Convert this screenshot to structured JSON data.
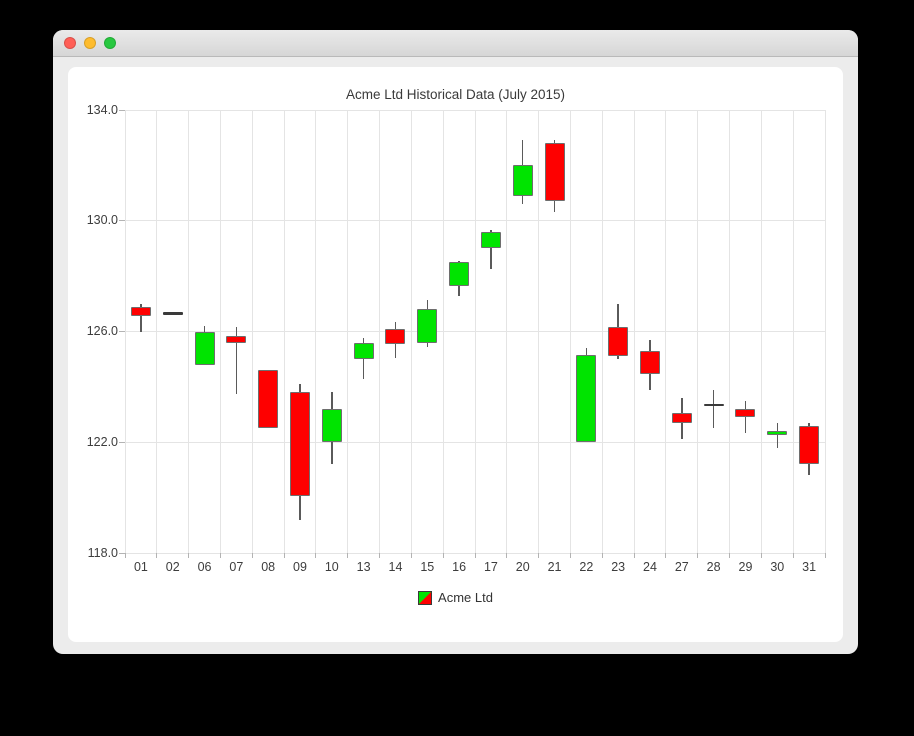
{
  "window": {
    "controls": [
      {
        "name": "close",
        "color": "#ff5f57"
      },
      {
        "name": "minimize",
        "color": "#febc2e"
      },
      {
        "name": "zoom",
        "color": "#28c840"
      }
    ]
  },
  "chart_data": {
    "type": "candlestick",
    "title": "Acme Ltd Historical Data (July 2015)",
    "legend_label": "Acme Ltd",
    "legend_position": "bottom",
    "grid": true,
    "ylim": [
      118.0,
      134.0
    ],
    "y_ticks": [
      134.0,
      130.0,
      126.0,
      122.0,
      118.0
    ],
    "y_tick_labels": [
      "134.0",
      "130.0",
      "126.0",
      "122.0",
      "118.0"
    ],
    "x_labels": [
      "01",
      "02",
      "06",
      "07",
      "08",
      "09",
      "10",
      "13",
      "14",
      "15",
      "16",
      "17",
      "20",
      "21",
      "22",
      "23",
      "24",
      "27",
      "28",
      "29",
      "30",
      "31"
    ],
    "colors": {
      "up": "#00e400",
      "down": "#fe0000",
      "neutral": "#3a3a3a",
      "wick": "#5a5a5a",
      "body_border": "#6e6e6e"
    },
    "series": [
      {
        "name": "Acme Ltd",
        "ohlc": [
          {
            "date": "01",
            "open": 126.9,
            "high": 127.0,
            "low": 126.0,
            "close": 126.55
          },
          {
            "date": "02",
            "open": 126.65,
            "high": 126.65,
            "low": 126.65,
            "close": 126.65
          },
          {
            "date": "06",
            "open": 124.8,
            "high": 126.2,
            "low": 124.8,
            "close": 126.0
          },
          {
            "date": "07",
            "open": 125.85,
            "high": 126.15,
            "low": 123.75,
            "close": 125.6
          },
          {
            "date": "08",
            "open": 124.6,
            "high": 124.6,
            "low": 122.5,
            "close": 122.5
          },
          {
            "date": "09",
            "open": 123.8,
            "high": 124.1,
            "low": 119.2,
            "close": 120.05
          },
          {
            "date": "10",
            "open": 122.0,
            "high": 123.8,
            "low": 121.2,
            "close": 123.2
          },
          {
            "date": "13",
            "open": 125.0,
            "high": 125.75,
            "low": 124.3,
            "close": 125.6
          },
          {
            "date": "14",
            "open": 126.1,
            "high": 126.35,
            "low": 125.05,
            "close": 125.55
          },
          {
            "date": "15",
            "open": 125.6,
            "high": 127.15,
            "low": 125.45,
            "close": 126.8
          },
          {
            "date": "16",
            "open": 127.65,
            "high": 128.55,
            "low": 127.3,
            "close": 128.5
          },
          {
            "date": "17",
            "open": 129.0,
            "high": 129.65,
            "low": 128.25,
            "close": 129.6
          },
          {
            "date": "20",
            "open": 130.9,
            "high": 132.9,
            "low": 130.6,
            "close": 132.0
          },
          {
            "date": "21",
            "open": 132.8,
            "high": 132.9,
            "low": 130.3,
            "close": 130.7
          },
          {
            "date": "22",
            "open": 122.0,
            "high": 125.4,
            "low": 122.0,
            "close": 125.15
          },
          {
            "date": "23",
            "open": 126.15,
            "high": 127.0,
            "low": 125.0,
            "close": 125.1
          },
          {
            "date": "24",
            "open": 125.3,
            "high": 125.7,
            "low": 123.9,
            "close": 124.45
          },
          {
            "date": "27",
            "open": 123.05,
            "high": 123.6,
            "low": 122.1,
            "close": 122.7
          },
          {
            "date": "28",
            "open": 123.35,
            "high": 123.9,
            "low": 122.5,
            "close": 123.35
          },
          {
            "date": "29",
            "open": 123.2,
            "high": 123.5,
            "low": 122.35,
            "close": 122.9
          },
          {
            "date": "30",
            "open": 122.25,
            "high": 122.7,
            "low": 121.8,
            "close": 122.4
          },
          {
            "date": "31",
            "open": 122.6,
            "high": 122.7,
            "low": 120.8,
            "close": 121.2
          }
        ]
      }
    ]
  }
}
